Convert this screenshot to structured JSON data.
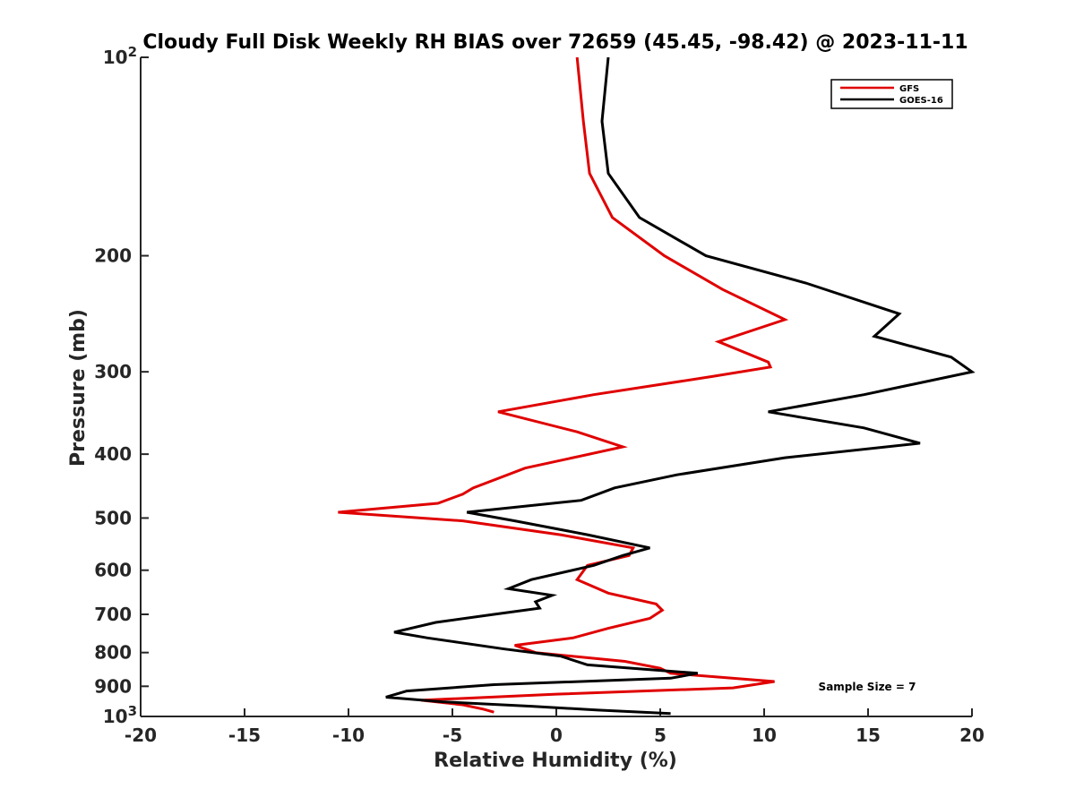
{
  "chart_data": {
    "type": "line",
    "title": "Cloudy Full Disk Weekly RH BIAS over 72659 (45.45, -98.42) @ 2023-11-11",
    "xlabel": "Relative Humidity (%)",
    "ylabel": "Pressure (mb)",
    "xlim": [
      -20,
      20
    ],
    "ylim": [
      1000,
      100
    ],
    "y_scale": "log",
    "y_reversed": true,
    "x_ticks": [
      "-20",
      "-15",
      "-10",
      "-5",
      "0",
      "5",
      "10",
      "15",
      "20"
    ],
    "y_ticks": [
      {
        "value": 100,
        "base": "10",
        "exp": "2"
      },
      {
        "value": 200,
        "label": "200"
      },
      {
        "value": 300,
        "label": "300"
      },
      {
        "value": 400,
        "label": "400"
      },
      {
        "value": 500,
        "label": "500"
      },
      {
        "value": 600,
        "label": "600"
      },
      {
        "value": 700,
        "label": "700"
      },
      {
        "value": 800,
        "label": "800"
      },
      {
        "value": 900,
        "label": "900"
      },
      {
        "value": 1000,
        "base": "10",
        "exp": "3"
      }
    ],
    "grid": false,
    "legend_position": "top-right",
    "annotation": "Sample Size = 7",
    "series": [
      {
        "name": "GFS",
        "color": "#e00000",
        "points": [
          [
            1.0,
            100
          ],
          [
            1.3,
            125
          ],
          [
            1.6,
            150
          ],
          [
            2.7,
            175
          ],
          [
            5.2,
            200
          ],
          [
            8.0,
            225
          ],
          [
            11.0,
            250
          ],
          [
            7.8,
            270
          ],
          [
            10.2,
            290
          ],
          [
            10.3,
            295
          ],
          [
            7.5,
            305
          ],
          [
            1.8,
            325
          ],
          [
            -2.8,
            345
          ],
          [
            1.0,
            370
          ],
          [
            3.2,
            390
          ],
          [
            -1.5,
            420
          ],
          [
            -4.0,
            450
          ],
          [
            -4.5,
            460
          ],
          [
            -5.7,
            475
          ],
          [
            -10.5,
            490
          ],
          [
            -4.5,
            505
          ],
          [
            0.2,
            530
          ],
          [
            3.7,
            555
          ],
          [
            3.5,
            570
          ],
          [
            1.5,
            590
          ],
          [
            1.0,
            620
          ],
          [
            2.5,
            650
          ],
          [
            4.8,
            675
          ],
          [
            5.1,
            690
          ],
          [
            4.5,
            710
          ],
          [
            2.5,
            735
          ],
          [
            0.8,
            760
          ],
          [
            -2.0,
            780
          ],
          [
            -1.0,
            800
          ],
          [
            3.3,
            825
          ],
          [
            5.0,
            845
          ],
          [
            5.5,
            860
          ],
          [
            10.5,
            885
          ],
          [
            8.5,
            905
          ],
          [
            0.0,
            925
          ],
          [
            -6.5,
            945
          ],
          [
            -4.5,
            960
          ],
          [
            -3.5,
            975
          ],
          [
            -3.0,
            985
          ]
        ]
      },
      {
        "name": "GOES-16",
        "color": "#000000",
        "points": [
          [
            2.5,
            100
          ],
          [
            2.2,
            125
          ],
          [
            2.5,
            150
          ],
          [
            4.0,
            175
          ],
          [
            7.2,
            200
          ],
          [
            12.0,
            220
          ],
          [
            16.5,
            245
          ],
          [
            15.3,
            265
          ],
          [
            19.0,
            285
          ],
          [
            20.0,
            300
          ],
          [
            14.8,
            325
          ],
          [
            10.2,
            345
          ],
          [
            14.8,
            365
          ],
          [
            17.5,
            385
          ],
          [
            11.0,
            405
          ],
          [
            5.8,
            430
          ],
          [
            2.8,
            450
          ],
          [
            1.2,
            470
          ],
          [
            -4.3,
            490
          ],
          [
            -2.0,
            505
          ],
          [
            1.5,
            530
          ],
          [
            4.5,
            555
          ],
          [
            3.2,
            570
          ],
          [
            1.8,
            590
          ],
          [
            -1.2,
            620
          ],
          [
            -2.3,
            640
          ],
          [
            -0.2,
            655
          ],
          [
            -1.0,
            670
          ],
          [
            -0.8,
            685
          ],
          [
            -3.0,
            700
          ],
          [
            -5.8,
            720
          ],
          [
            -7.8,
            745
          ],
          [
            -6.2,
            760
          ],
          [
            -2.5,
            790
          ],
          [
            0.2,
            810
          ],
          [
            1.5,
            835
          ],
          [
            6.8,
            860
          ],
          [
            5.5,
            875
          ],
          [
            -3.0,
            895
          ],
          [
            -7.2,
            915
          ],
          [
            -8.2,
            935
          ],
          [
            -5.5,
            950
          ],
          [
            -1.2,
            965
          ],
          [
            2.0,
            978
          ],
          [
            5.5,
            990
          ]
        ]
      }
    ]
  }
}
